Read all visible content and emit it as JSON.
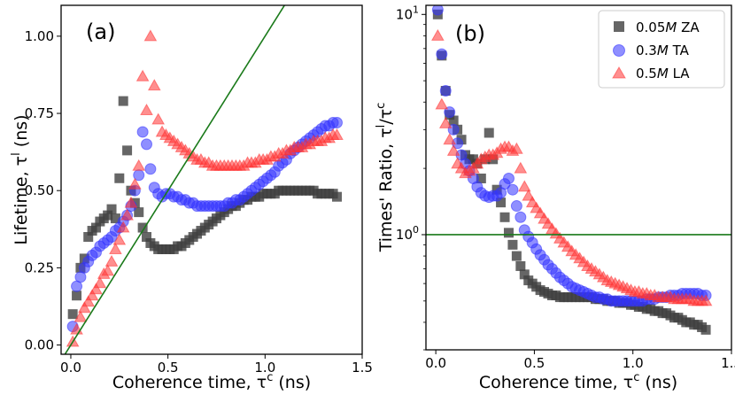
{
  "chart_data": [
    {
      "type": "scatter",
      "panel_label": "(a)",
      "xlabel": "Coherence time, τ",
      "xlabel_sup": "c",
      "xlabel_unit": " (ns)",
      "ylabel": "Lifetime, τ",
      "ylabel_sup": "l",
      "ylabel_unit": " (ns)",
      "xlim": [
        -0.05,
        1.5
      ],
      "ylim": [
        -0.03,
        1.1
      ],
      "xticks": [
        0.0,
        0.5,
        1.0,
        1.5
      ],
      "xtick_labels": [
        "0.0",
        "0.5",
        "1.0",
        "1.5"
      ],
      "yticks": [
        0.0,
        0.25,
        0.5,
        0.75,
        1.0
      ],
      "ytick_labels": [
        "0.00",
        "0.25",
        "0.50",
        "0.75",
        "1.00"
      ],
      "reference_line": {
        "slope": 1.0,
        "intercept": 0.0,
        "color": "#1a7a1a"
      },
      "series": [
        {
          "name": "0.05M ZA",
          "marker": "square",
          "color": "#404040",
          "x": [
            0.01,
            0.03,
            0.05,
            0.07,
            0.09,
            0.11,
            0.13,
            0.15,
            0.17,
            0.19,
            0.21,
            0.23,
            0.25,
            0.27,
            0.29,
            0.31,
            0.33,
            0.35,
            0.37,
            0.39,
            0.41,
            0.43,
            0.45,
            0.47,
            0.49,
            0.51,
            0.53,
            0.55,
            0.57,
            0.59,
            0.61,
            0.63,
            0.65,
            0.67,
            0.69,
            0.71,
            0.73,
            0.75,
            0.77,
            0.79,
            0.81,
            0.83,
            0.85,
            0.87,
            0.89,
            0.91,
            0.93,
            0.95,
            0.97,
            0.99,
            1.01,
            1.03,
            1.05,
            1.07,
            1.09,
            1.11,
            1.13,
            1.15,
            1.17,
            1.19,
            1.21,
            1.23,
            1.25,
            1.27,
            1.29,
            1.31,
            1.33,
            1.35,
            1.37
          ],
          "y": [
            0.1,
            0.16,
            0.25,
            0.28,
            0.35,
            0.37,
            0.38,
            0.4,
            0.41,
            0.42,
            0.44,
            0.41,
            0.54,
            0.79,
            0.63,
            0.5,
            0.46,
            0.43,
            0.38,
            0.35,
            0.33,
            0.32,
            0.31,
            0.31,
            0.31,
            0.31,
            0.31,
            0.32,
            0.32,
            0.33,
            0.34,
            0.35,
            0.36,
            0.37,
            0.38,
            0.39,
            0.4,
            0.41,
            0.42,
            0.43,
            0.44,
            0.45,
            0.45,
            0.46,
            0.47,
            0.47,
            0.48,
            0.48,
            0.48,
            0.49,
            0.49,
            0.49,
            0.49,
            0.5,
            0.5,
            0.5,
            0.5,
            0.5,
            0.5,
            0.5,
            0.5,
            0.5,
            0.5,
            0.49,
            0.49,
            0.49,
            0.49,
            0.49,
            0.48
          ]
        },
        {
          "name": "0.3M TA",
          "marker": "circle",
          "color": "#3333ff",
          "x": [
            0.01,
            0.03,
            0.05,
            0.07,
            0.09,
            0.11,
            0.13,
            0.15,
            0.17,
            0.19,
            0.21,
            0.23,
            0.25,
            0.27,
            0.29,
            0.31,
            0.33,
            0.35,
            0.37,
            0.39,
            0.41,
            0.43,
            0.45,
            0.47,
            0.49,
            0.51,
            0.53,
            0.55,
            0.57,
            0.59,
            0.61,
            0.63,
            0.65,
            0.67,
            0.69,
            0.71,
            0.73,
            0.75,
            0.77,
            0.79,
            0.81,
            0.83,
            0.85,
            0.87,
            0.89,
            0.91,
            0.93,
            0.95,
            0.97,
            0.99,
            1.01,
            1.03,
            1.05,
            1.07,
            1.09,
            1.11,
            1.13,
            1.15,
            1.17,
            1.19,
            1.21,
            1.23,
            1.25,
            1.27,
            1.29,
            1.31,
            1.33,
            1.35,
            1.37
          ],
          "y": [
            0.06,
            0.19,
            0.22,
            0.25,
            0.27,
            0.29,
            0.3,
            0.32,
            0.33,
            0.34,
            0.35,
            0.37,
            0.38,
            0.4,
            0.42,
            0.45,
            0.5,
            0.55,
            0.69,
            0.65,
            0.57,
            0.51,
            0.49,
            0.48,
            0.49,
            0.49,
            0.48,
            0.48,
            0.47,
            0.47,
            0.46,
            0.46,
            0.45,
            0.45,
            0.45,
            0.45,
            0.45,
            0.45,
            0.45,
            0.45,
            0.46,
            0.46,
            0.47,
            0.47,
            0.48,
            0.49,
            0.5,
            0.51,
            0.52,
            0.53,
            0.54,
            0.55,
            0.56,
            0.58,
            0.59,
            0.6,
            0.62,
            0.63,
            0.64,
            0.65,
            0.66,
            0.67,
            0.68,
            0.69,
            0.7,
            0.71,
            0.71,
            0.72,
            0.72
          ]
        },
        {
          "name": "0.5M LA",
          "marker": "triangle",
          "color": "#ff3333",
          "x": [
            0.01,
            0.03,
            0.05,
            0.07,
            0.09,
            0.11,
            0.13,
            0.15,
            0.17,
            0.19,
            0.21,
            0.23,
            0.25,
            0.27,
            0.29,
            0.31,
            0.33,
            0.35,
            0.37,
            0.39,
            0.41,
            0.43,
            0.45,
            0.47,
            0.49,
            0.51,
            0.53,
            0.55,
            0.57,
            0.59,
            0.61,
            0.63,
            0.65,
            0.67,
            0.69,
            0.71,
            0.73,
            0.75,
            0.77,
            0.79,
            0.81,
            0.83,
            0.85,
            0.87,
            0.89,
            0.91,
            0.93,
            0.95,
            0.97,
            0.99,
            1.01,
            1.03,
            1.05,
            1.07,
            1.09,
            1.11,
            1.13,
            1.15,
            1.17,
            1.19,
            1.21,
            1.23,
            1.25,
            1.27,
            1.29,
            1.31,
            1.33,
            1.35,
            1.37
          ],
          "y": [
            0.01,
            0.05,
            0.09,
            0.12,
            0.14,
            0.16,
            0.18,
            0.2,
            0.23,
            0.24,
            0.27,
            0.31,
            0.34,
            0.38,
            0.42,
            0.46,
            0.52,
            0.58,
            0.87,
            0.76,
            1.0,
            0.84,
            0.73,
            0.69,
            0.68,
            0.67,
            0.66,
            0.65,
            0.64,
            0.63,
            0.62,
            0.61,
            0.6,
            0.6,
            0.59,
            0.59,
            0.58,
            0.58,
            0.58,
            0.58,
            0.58,
            0.58,
            0.58,
            0.58,
            0.58,
            0.59,
            0.59,
            0.59,
            0.6,
            0.6,
            0.6,
            0.61,
            0.61,
            0.62,
            0.62,
            0.63,
            0.63,
            0.64,
            0.64,
            0.64,
            0.65,
            0.65,
            0.66,
            0.66,
            0.66,
            0.67,
            0.67,
            0.68,
            0.68
          ]
        }
      ]
    },
    {
      "type": "scatter",
      "panel_label": "(b)",
      "xlabel": "Coherence time, τ",
      "xlabel_sup": "c",
      "xlabel_unit": " (ns)",
      "ylabel": "Times' Ratio, τ",
      "ylabel_sup": "l",
      "ylabel_mid": "/τ",
      "ylabel_sup2": "c",
      "yscale": "log",
      "xlim": [
        -0.05,
        1.5
      ],
      "ylim": [
        0.3,
        11
      ],
      "xticks": [
        0.0,
        0.5,
        1.0,
        1.5
      ],
      "xtick_labels": [
        "0.0",
        "0.5",
        "1.0",
        "1.5"
      ],
      "yticks": [
        1,
        10
      ],
      "ytick_base": [
        "10",
        "10"
      ],
      "ytick_exp": [
        "0",
        "1"
      ],
      "reference_line": {
        "y": 1.0,
        "color": "#1a7a1a"
      },
      "legend": {
        "position": "top-right",
        "entries": [
          {
            "prefix": "0.05",
            "italic": "M",
            "suffix": " ZA"
          },
          {
            "prefix": "0.3",
            "italic": "M",
            "suffix": " TA"
          },
          {
            "prefix": "0.5",
            "italic": "M",
            "suffix": " LA"
          }
        ]
      },
      "series": [
        {
          "name": "0.05M ZA",
          "marker": "square",
          "color": "#404040",
          "x": [
            0.01,
            0.03,
            0.05,
            0.07,
            0.09,
            0.11,
            0.13,
            0.15,
            0.17,
            0.19,
            0.21,
            0.23,
            0.25,
            0.27,
            0.29,
            0.31,
            0.33,
            0.35,
            0.37,
            0.39,
            0.41,
            0.43,
            0.45,
            0.47,
            0.49,
            0.51,
            0.53,
            0.55,
            0.57,
            0.59,
            0.61,
            0.63,
            0.65,
            0.67,
            0.69,
            0.71,
            0.73,
            0.75,
            0.77,
            0.79,
            0.81,
            0.83,
            0.85,
            0.87,
            0.89,
            0.91,
            0.93,
            0.95,
            0.97,
            0.99,
            1.01,
            1.03,
            1.05,
            1.07,
            1.09,
            1.11,
            1.13,
            1.15,
            1.17,
            1.19,
            1.21,
            1.23,
            1.25,
            1.27,
            1.29,
            1.31,
            1.33,
            1.35,
            1.37
          ],
          "y": [
            10.0,
            6.5,
            4.5,
            3.5,
            3.3,
            3.0,
            2.7,
            2.3,
            2.2,
            2.2,
            2.1,
            1.8,
            2.2,
            2.9,
            2.2,
            1.6,
            1.4,
            1.2,
            1.02,
            0.9,
            0.8,
            0.72,
            0.66,
            0.62,
            0.6,
            0.58,
            0.56,
            0.55,
            0.54,
            0.53,
            0.53,
            0.52,
            0.52,
            0.52,
            0.52,
            0.52,
            0.52,
            0.52,
            0.52,
            0.52,
            0.51,
            0.51,
            0.51,
            0.5,
            0.5,
            0.5,
            0.49,
            0.49,
            0.49,
            0.48,
            0.48,
            0.47,
            0.47,
            0.46,
            0.46,
            0.45,
            0.45,
            0.44,
            0.44,
            0.43,
            0.42,
            0.42,
            0.41,
            0.4,
            0.4,
            0.39,
            0.39,
            0.38,
            0.37
          ]
        },
        {
          "name": "0.3M TA",
          "marker": "circle",
          "color": "#3333ff",
          "x": [
            0.01,
            0.03,
            0.05,
            0.07,
            0.09,
            0.11,
            0.13,
            0.15,
            0.17,
            0.19,
            0.21,
            0.23,
            0.25,
            0.27,
            0.29,
            0.31,
            0.33,
            0.35,
            0.37,
            0.39,
            0.41,
            0.43,
            0.45,
            0.47,
            0.49,
            0.51,
            0.53,
            0.55,
            0.57,
            0.59,
            0.61,
            0.63,
            0.65,
            0.67,
            0.69,
            0.71,
            0.73,
            0.75,
            0.77,
            0.79,
            0.81,
            0.83,
            0.85,
            0.87,
            0.89,
            0.91,
            0.93,
            0.95,
            0.97,
            0.99,
            1.01,
            1.03,
            1.05,
            1.07,
            1.09,
            1.11,
            1.13,
            1.15,
            1.17,
            1.19,
            1.21,
            1.23,
            1.25,
            1.27,
            1.29,
            1.31,
            1.33,
            1.35,
            1.37
          ],
          "y": [
            10.5,
            6.6,
            4.5,
            3.6,
            3.0,
            2.6,
            2.3,
            2.1,
            1.95,
            1.8,
            1.65,
            1.55,
            1.5,
            1.48,
            1.5,
            1.5,
            1.55,
            1.7,
            1.8,
            1.6,
            1.35,
            1.2,
            1.05,
            0.98,
            0.92,
            0.86,
            0.81,
            0.77,
            0.73,
            0.7,
            0.67,
            0.64,
            0.62,
            0.6,
            0.58,
            0.57,
            0.56,
            0.55,
            0.54,
            0.53,
            0.52,
            0.52,
            0.51,
            0.51,
            0.5,
            0.5,
            0.5,
            0.5,
            0.5,
            0.5,
            0.5,
            0.5,
            0.5,
            0.51,
            0.51,
            0.51,
            0.52,
            0.52,
            0.52,
            0.53,
            0.53,
            0.53,
            0.54,
            0.54,
            0.54,
            0.54,
            0.54,
            0.53,
            0.53
          ]
        },
        {
          "name": "0.5M LA",
          "marker": "triangle",
          "color": "#ff3333",
          "x": [
            0.01,
            0.03,
            0.05,
            0.07,
            0.09,
            0.11,
            0.13,
            0.15,
            0.17,
            0.19,
            0.21,
            0.23,
            0.25,
            0.27,
            0.29,
            0.31,
            0.33,
            0.35,
            0.37,
            0.39,
            0.41,
            0.43,
            0.45,
            0.47,
            0.49,
            0.51,
            0.53,
            0.55,
            0.57,
            0.59,
            0.61,
            0.63,
            0.65,
            0.67,
            0.69,
            0.71,
            0.73,
            0.75,
            0.77,
            0.79,
            0.81,
            0.83,
            0.85,
            0.87,
            0.89,
            0.91,
            0.93,
            0.95,
            0.97,
            0.99,
            1.01,
            1.03,
            1.05,
            1.07,
            1.09,
            1.11,
            1.13,
            1.15,
            1.17,
            1.19,
            1.21,
            1.23,
            1.25,
            1.27,
            1.29,
            1.31,
            1.33,
            1.35,
            1.37
          ],
          "y": [
            8.0,
            3.9,
            3.2,
            2.7,
            2.4,
            2.1,
            2.0,
            1.9,
            1.95,
            2.0,
            2.1,
            2.2,
            2.25,
            2.3,
            2.3,
            2.35,
            2.45,
            2.5,
            2.5,
            2.4,
            2.45,
            2.0,
            1.65,
            1.5,
            1.4,
            1.32,
            1.25,
            1.18,
            1.12,
            1.06,
            1.01,
            0.96,
            0.92,
            0.88,
            0.84,
            0.81,
            0.78,
            0.75,
            0.72,
            0.7,
            0.68,
            0.66,
            0.64,
            0.62,
            0.61,
            0.6,
            0.59,
            0.58,
            0.57,
            0.56,
            0.55,
            0.55,
            0.54,
            0.54,
            0.53,
            0.53,
            0.52,
            0.52,
            0.52,
            0.52,
            0.51,
            0.51,
            0.51,
            0.51,
            0.51,
            0.5,
            0.5,
            0.5,
            0.5
          ]
        }
      ]
    }
  ]
}
